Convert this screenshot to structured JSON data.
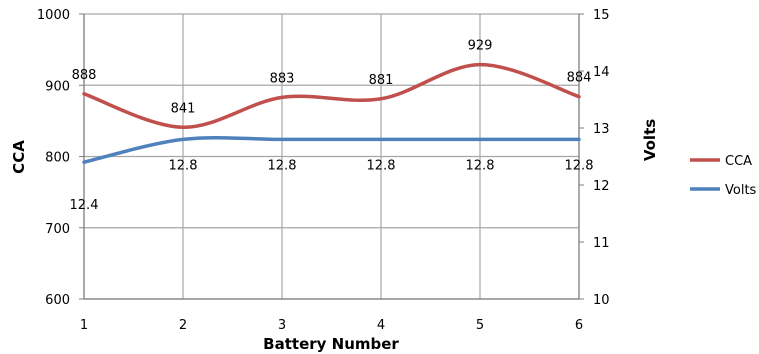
{
  "chart_data": {
    "type": "line",
    "title": "",
    "xlabel": "Battery Number",
    "ylabel_left": "CCA",
    "ylabel_right": "Volts",
    "x": [
      1,
      2,
      3,
      4,
      5,
      6
    ],
    "x_tick_labels": [
      "1",
      "2",
      "3",
      "4",
      "5",
      "6"
    ],
    "y_left_range": [
      600,
      1000
    ],
    "y_left_ticks": [
      "600",
      "700",
      "800",
      "900",
      "1000"
    ],
    "y_right_range": [
      10,
      15
    ],
    "y_right_ticks": [
      "10",
      "11",
      "12",
      "13",
      "14",
      "15"
    ],
    "grid": true,
    "smooth": true,
    "legend_position": "right",
    "series": [
      {
        "name": "CCA",
        "axis": "left",
        "color": "#c0504d",
        "values": [
          888,
          841,
          883,
          881,
          929,
          884
        ],
        "labels": [
          "888",
          "841",
          "883",
          "881",
          "929",
          "884"
        ]
      },
      {
        "name": "Volts",
        "axis": "right",
        "color": "#4f81bd",
        "values": [
          12.4,
          12.8,
          12.8,
          12.8,
          12.8,
          12.8
        ],
        "labels": [
          "12.4",
          "12.8",
          "12.8",
          "12.8",
          "12.8",
          "12.8"
        ]
      }
    ]
  }
}
